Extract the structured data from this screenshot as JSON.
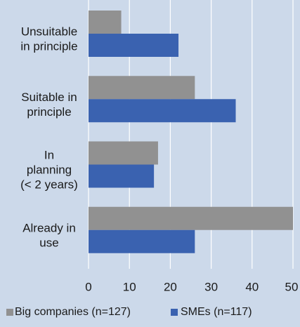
{
  "chart_data": {
    "type": "bar",
    "orientation": "horizontal",
    "categories": [
      [
        "Unsuitable",
        "in principle"
      ],
      [
        "Suitable in",
        "principle"
      ],
      [
        "In",
        "planning",
        "(< 2 years)"
      ],
      [
        "Already in",
        "use"
      ]
    ],
    "series": [
      {
        "name": "Big companies (n=127)",
        "values": [
          8,
          26,
          17,
          50
        ],
        "color": "#919191"
      },
      {
        "name": "SMEs (n=117)",
        "values": [
          22,
          36,
          16,
          26
        ],
        "color": "#3a62b0"
      }
    ],
    "xlim": [
      0,
      50
    ],
    "x_ticks": [
      "0",
      "10",
      "20",
      "30",
      "40",
      "50"
    ],
    "grid": true,
    "legend_position": "bottom"
  }
}
